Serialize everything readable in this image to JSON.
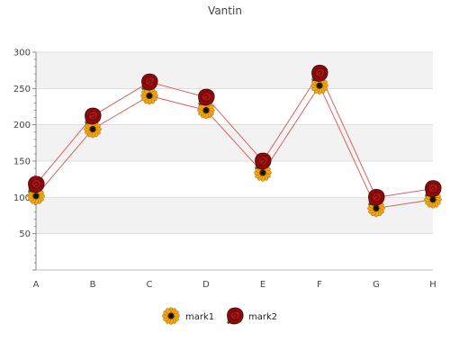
{
  "chart_data": {
    "type": "line",
    "title": "Vantin",
    "xlabel": "",
    "ylabel": "",
    "categories": [
      "A",
      "B",
      "C",
      "D",
      "E",
      "F",
      "G",
      "H"
    ],
    "series": [
      {
        "name": "mark1",
        "values": [
          102,
          194,
          240,
          220,
          134,
          254,
          85,
          97
        ],
        "marker_icon": "sunflower-icon",
        "line_color": "#d9534f"
      },
      {
        "name": "mark2",
        "values": [
          118,
          212,
          259,
          238,
          150,
          271,
          100,
          112
        ],
        "marker_icon": "rose-icon",
        "line_color": "#d9534f"
      }
    ],
    "ylim": [
      0,
      300
    ],
    "yticks": [
      50,
      100,
      150,
      200,
      250,
      300
    ],
    "grid": true,
    "band_color": "#f2f2f2",
    "legend_position": "bottom-center"
  }
}
